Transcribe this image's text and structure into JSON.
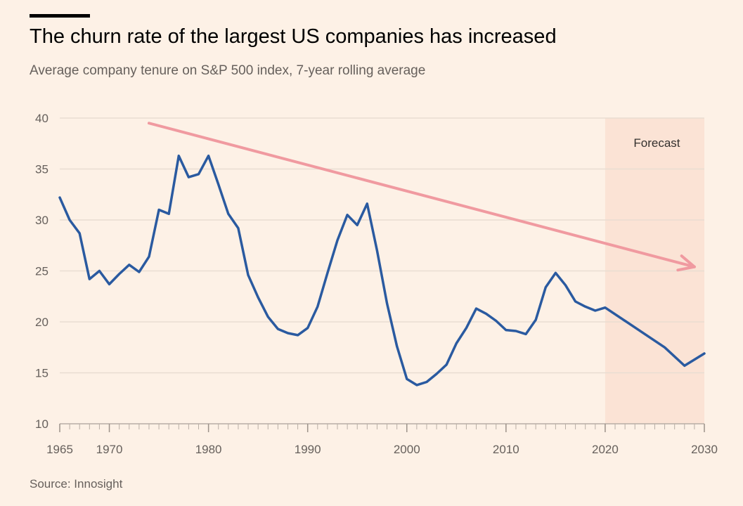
{
  "header": {
    "title": "The churn rate of the largest US companies has increased",
    "subtitle": "Average company tenure on S&P 500 index, 7-year rolling average"
  },
  "footer": {
    "source": "Source: Innosight"
  },
  "colors": {
    "background": "#fdf1e6",
    "line": "#2a5aa0",
    "forecast_band": "#fbe3d5",
    "trend_arrow": "#f09aa0",
    "gridline": "#e9ddd2"
  },
  "chart_data": {
    "type": "line",
    "title": "The churn rate of the largest US companies has increased",
    "subtitle": "Average company tenure on S&P 500 index, 7-year rolling average",
    "xlim": [
      1965,
      2030
    ],
    "ylim": [
      10,
      40
    ],
    "x_ticks": [
      1965,
      1970,
      1980,
      1990,
      2000,
      2010,
      2020,
      2030
    ],
    "y_ticks": [
      10,
      15,
      20,
      25,
      30,
      35,
      40
    ],
    "grid": true,
    "forecast_region": {
      "label": "Forecast",
      "x_start": 2020,
      "x_end": 2030
    },
    "trend_arrow": {
      "from": [
        1974,
        39.5
      ],
      "to": [
        2029,
        25.4
      ],
      "direction": "down-right"
    },
    "series": [
      {
        "x": [
          1965,
          1966,
          1967,
          1968,
          1969,
          1970,
          1971,
          1972,
          1973,
          1974,
          1975,
          1976,
          1977,
          1978,
          1979,
          1980,
          1981,
          1982,
          1983,
          1984,
          1985,
          1986,
          1987,
          1988,
          1989,
          1990,
          1991,
          1992,
          1993,
          1994,
          1995,
          1996,
          1997,
          1998,
          1999,
          2000,
          2001,
          2002,
          2003,
          2004,
          2005,
          2006,
          2007,
          2008,
          2009,
          2010,
          2011,
          2012,
          2013,
          2014,
          2015,
          2016,
          2017,
          2018,
          2019,
          2020,
          2022,
          2024,
          2026,
          2028,
          2030
        ],
        "y": [
          32.2,
          30.0,
          28.7,
          24.2,
          25.0,
          23.7,
          24.7,
          25.6,
          24.9,
          26.4,
          31.0,
          30.6,
          36.3,
          34.2,
          34.5,
          36.3,
          33.5,
          30.6,
          29.2,
          24.6,
          22.4,
          20.5,
          19.3,
          18.9,
          18.7,
          19.4,
          21.5,
          24.8,
          28.0,
          30.5,
          29.5,
          31.6,
          27.0,
          21.8,
          17.6,
          14.4,
          13.8,
          14.1,
          14.9,
          15.8,
          17.9,
          19.4,
          21.3,
          20.8,
          20.1,
          19.2,
          19.1,
          18.8,
          20.2,
          23.4,
          24.8,
          23.6,
          22.0,
          21.5,
          21.1,
          21.4,
          20.1,
          18.8,
          17.5,
          15.7,
          16.9
        ]
      }
    ]
  }
}
